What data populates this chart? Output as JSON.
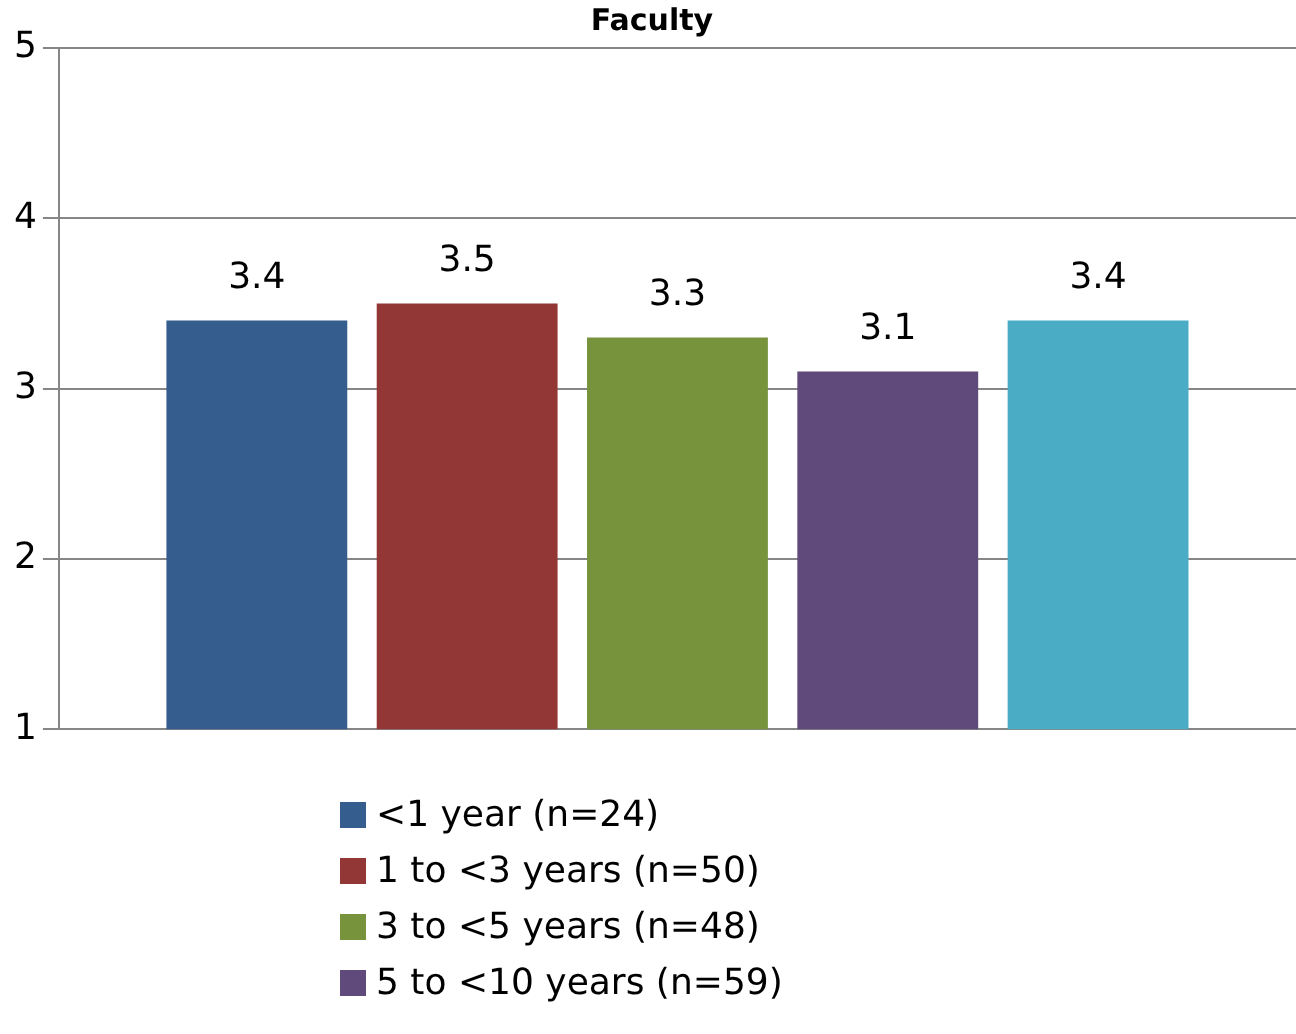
{
  "chart_data": {
    "type": "bar",
    "title": "Faculty",
    "categories": [
      null
    ],
    "series": [
      {
        "name": "<1 year (n=24)",
        "color": "#355e8e",
        "values": [
          3.4
        ]
      },
      {
        "name": "1 to <3 years (n=50)",
        "color": "#923735",
        "values": [
          3.5
        ]
      },
      {
        "name": "3 to <5 years (n=48)",
        "color": "#77933c",
        "values": [
          3.3
        ]
      },
      {
        "name": "5 to <10 years (n=59)",
        "color": "#604a7b",
        "values": [
          3.1
        ]
      },
      {
        "color": "#4bacc6",
        "values": [
          3.4
        ]
      }
    ],
    "ylim": [
      1,
      5
    ],
    "yticks": [
      1,
      2,
      3,
      4,
      5
    ],
    "grid": "y",
    "legend": "bottom",
    "data_labels": true
  }
}
